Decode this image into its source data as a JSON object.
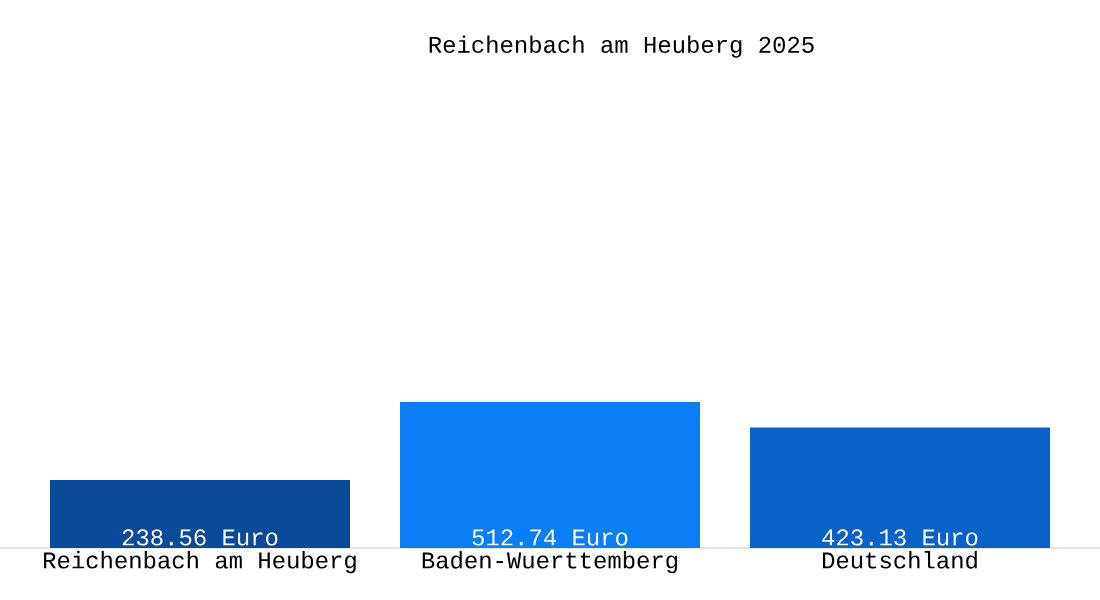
{
  "chart_data": {
    "type": "bar",
    "title": "Reichenbach am Heuberg 2025",
    "categories": [
      "Reichenbach am Heuberg",
      "Baden-Wuerttemberg",
      "Deutschland"
    ],
    "values": [
      238.56,
      512.74,
      423.13
    ],
    "colors": [
      "#0b4a99",
      "#0a7ef5",
      "#0a62c8"
    ],
    "value_labels": [
      "238.56 Euro",
      "512.74 Euro",
      "423.13 Euro"
    ]
  }
}
